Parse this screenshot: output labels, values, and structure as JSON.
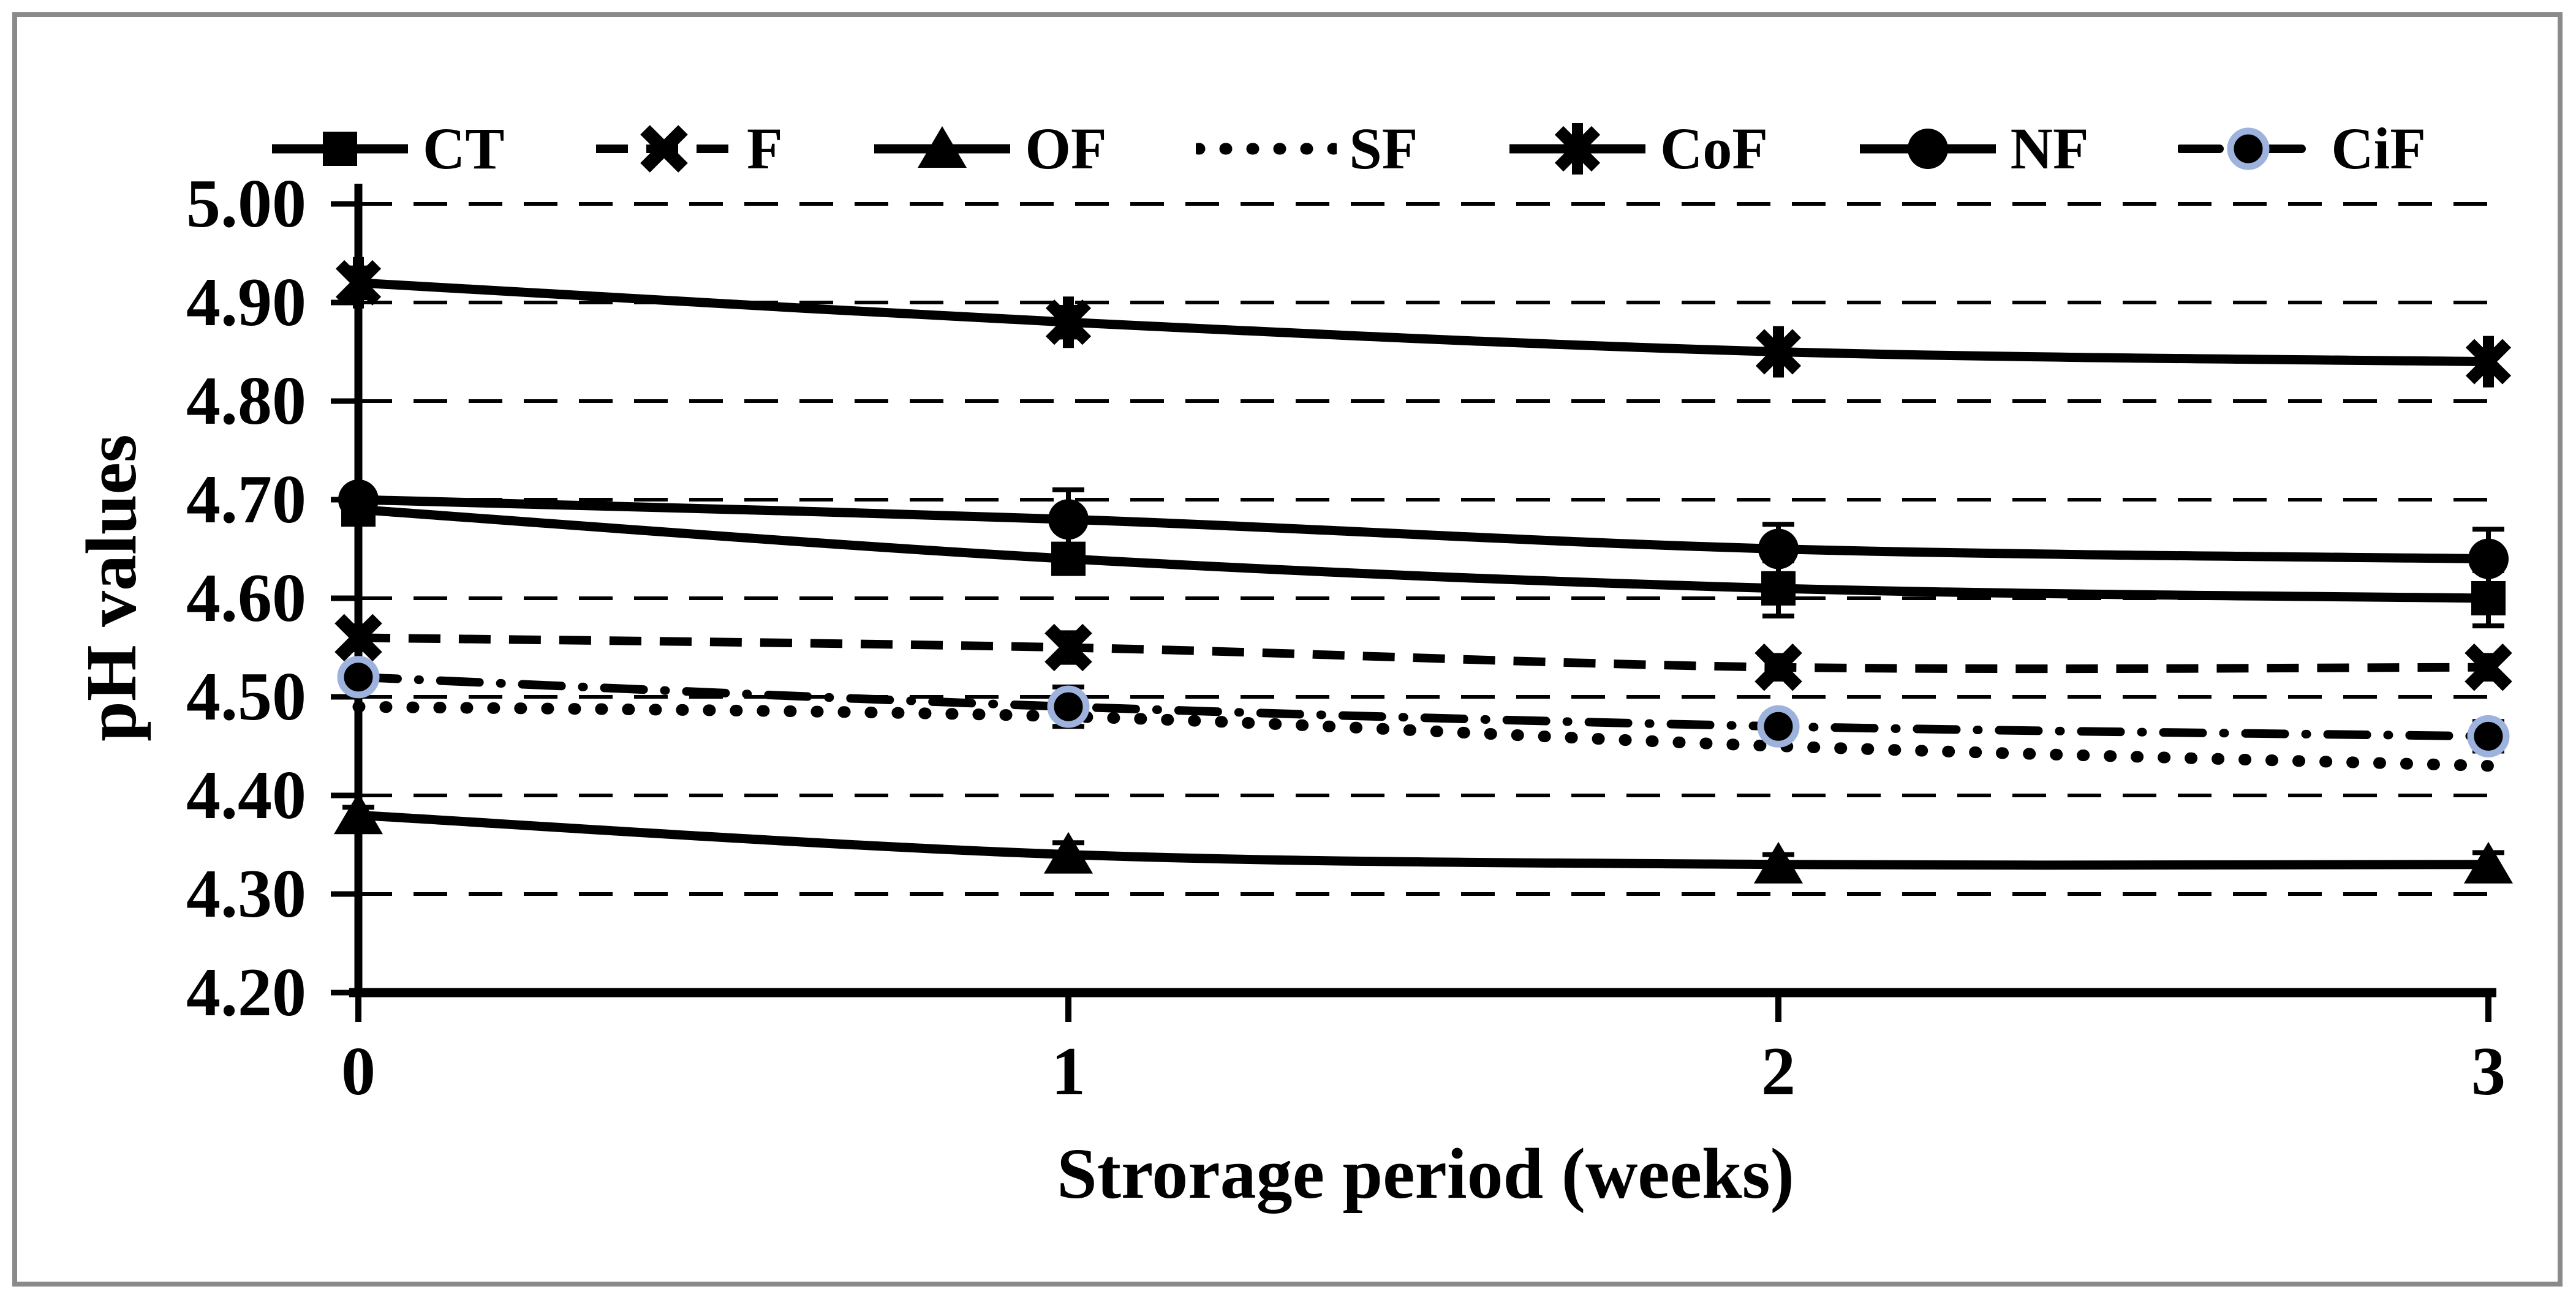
{
  "figure": {
    "background": "#ffffff",
    "border_color": "#8a8a8a",
    "line_color": "#000000"
  },
  "chart_data": {
    "type": "line",
    "title": "",
    "xlabel": "Strorage period (weeks)",
    "ylabel": "pH values",
    "x": [
      0,
      1,
      2,
      3
    ],
    "x_tick_labels": [
      "0",
      "1",
      "2",
      "3"
    ],
    "y_tick_labels": [
      "5.00",
      "4.90",
      "4.80",
      "4.70",
      "4.60",
      "4.50",
      "4.40",
      "4.30",
      "4.20"
    ],
    "ylim": [
      4.2,
      5.0
    ],
    "grid": "horizontal-dashed",
    "legend_position": "top",
    "series": [
      {
        "name": "CT",
        "line": "solid",
        "marker": "square",
        "color": "#000000",
        "values": [
          4.69,
          4.64,
          4.61,
          4.6
        ],
        "errors": [
          0.008,
          0.012,
          0.028,
          0.028
        ]
      },
      {
        "name": "F",
        "line": "dashed",
        "marker": "x",
        "color": "#000000",
        "values": [
          4.56,
          4.55,
          4.53,
          4.53
        ],
        "errors": [
          0.012,
          0.015,
          0.012,
          0.012
        ]
      },
      {
        "name": "OF",
        "line": "solid",
        "marker": "triangle",
        "color": "#000000",
        "values": [
          4.38,
          4.34,
          4.33,
          4.33
        ],
        "errors": [
          0.008,
          0.012,
          0.01,
          0.012
        ]
      },
      {
        "name": "SF",
        "line": "dotted",
        "marker": "none",
        "color": "#000000",
        "values": [
          4.49,
          4.48,
          4.45,
          4.43
        ],
        "errors": [
          0,
          0,
          0,
          0
        ]
      },
      {
        "name": "CoF",
        "line": "solid",
        "marker": "asterisk",
        "color": "#000000",
        "values": [
          4.92,
          4.88,
          4.85,
          4.84
        ],
        "errors": [
          0.015,
          0.015,
          0.012,
          0.012
        ]
      },
      {
        "name": "NF",
        "line": "solid",
        "marker": "circle",
        "color": "#000000",
        "values": [
          4.7,
          4.68,
          4.65,
          4.64
        ],
        "errors": [
          0.008,
          0.03,
          0.025,
          0.03
        ]
      },
      {
        "name": "CiF",
        "line": "dashdot",
        "marker": "circle-ring",
        "color": "#000000",
        "marker_ring_color": "#9db3dd",
        "values": [
          4.52,
          4.49,
          4.47,
          4.46
        ],
        "errors": [
          0.006,
          0.02,
          0.012,
          0.015
        ]
      }
    ]
  }
}
